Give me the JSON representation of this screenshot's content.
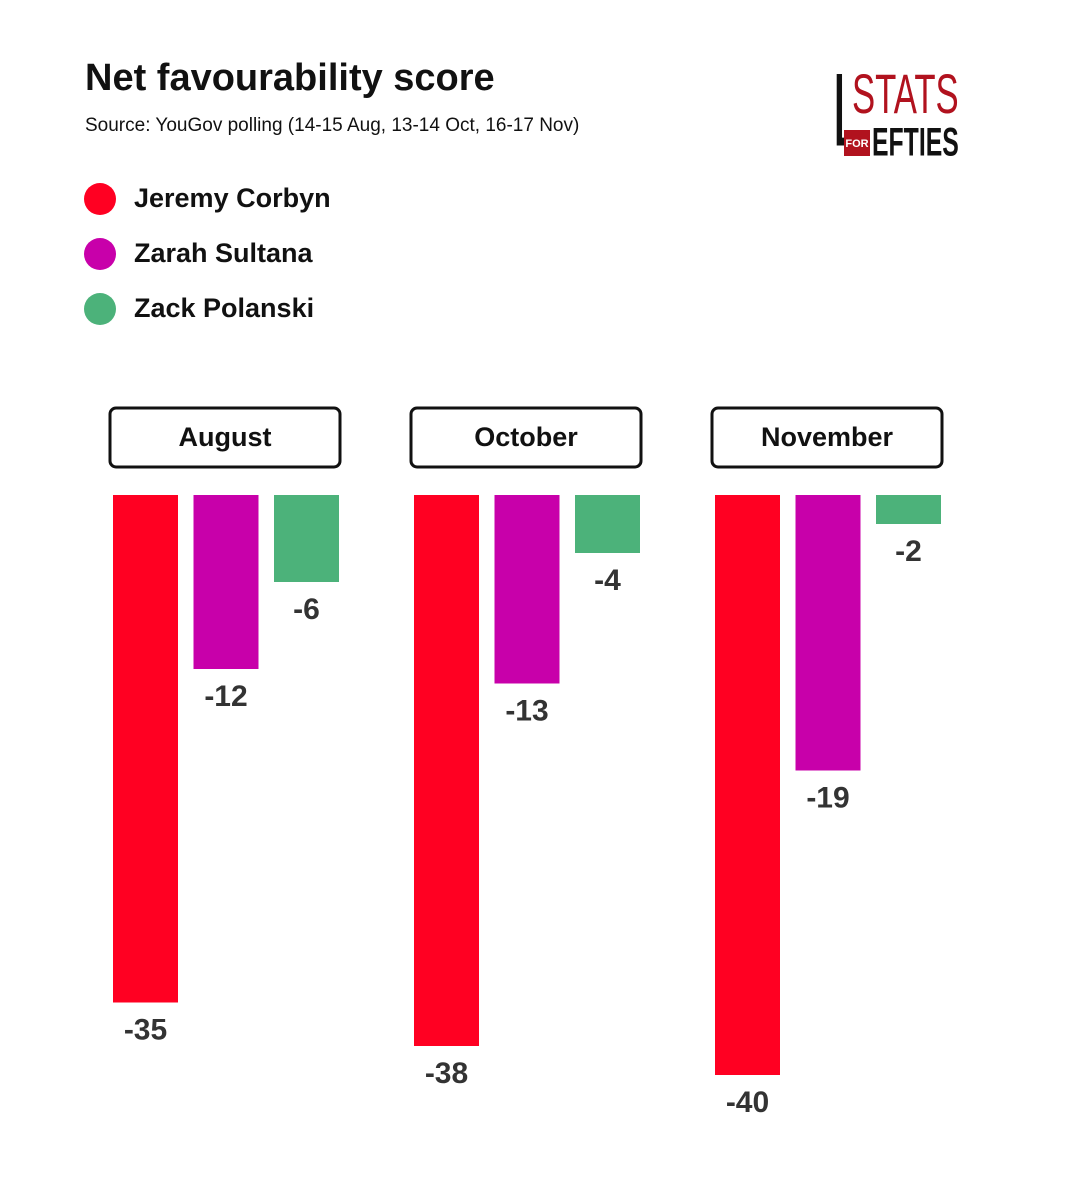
{
  "chart_data": {
    "type": "bar",
    "title": "Net favourability score",
    "subtitle": "Source: YouGov polling (14-15 Aug, 13-14 Oct, 16-17 Nov)",
    "categories": [
      "August",
      "October",
      "November"
    ],
    "series": [
      {
        "name": "Jeremy Corbyn",
        "color": "#ff0022",
        "values": [
          -35,
          -38,
          -40
        ]
      },
      {
        "name": "Zarah Sultana",
        "color": "#c800aa",
        "values": [
          -12,
          -13,
          -19
        ]
      },
      {
        "name": "Zack Polanski",
        "color": "#4cb27a",
        "values": [
          -6,
          -4,
          -2
        ]
      }
    ]
  },
  "logo": {
    "letter": "L",
    "top": "STATS",
    "small": "FOR",
    "bottom": "EFTIES"
  }
}
